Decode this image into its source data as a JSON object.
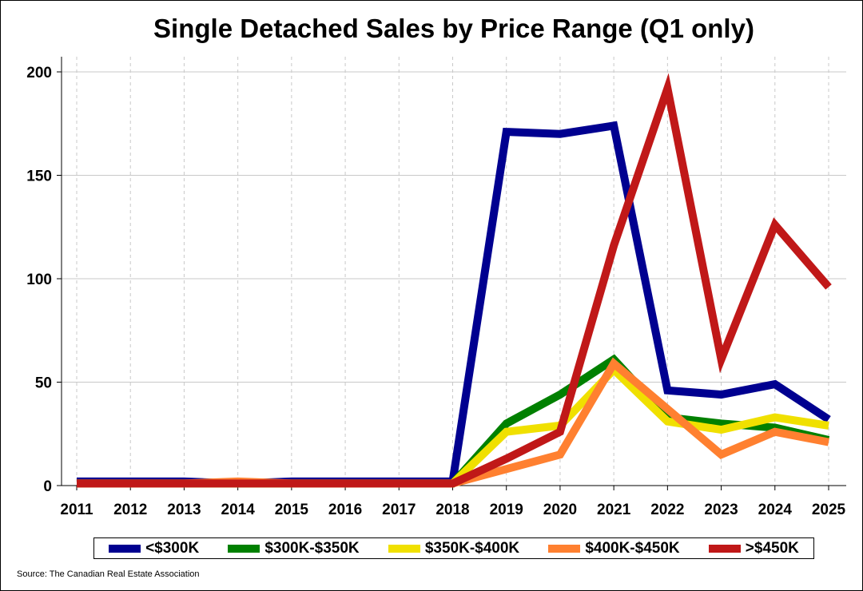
{
  "chart_data": {
    "type": "line",
    "title": "Single Detached Sales by Price Range (Q1 only)",
    "xlabel": "",
    "ylabel": "",
    "x": [
      2011,
      2012,
      2013,
      2014,
      2015,
      2016,
      2017,
      2018,
      2019,
      2020,
      2021,
      2022,
      2023,
      2024,
      2025
    ],
    "x_tick_labels": [
      "2011",
      "2012",
      "2013",
      "2014",
      "2015",
      "2016",
      "2017",
      "2018",
      "2019",
      "2020",
      "2021",
      "2022",
      "2023",
      "2024",
      "2025"
    ],
    "ylim": [
      0,
      200
    ],
    "y_ticks": [
      0,
      50,
      100,
      150,
      200
    ],
    "y_tick_labels": [
      "0",
      "50",
      "100",
      "150",
      "200"
    ],
    "grid": {
      "x": "dashed",
      "y": "solid"
    },
    "legend_position": "bottom",
    "series": [
      {
        "name": "<$300K",
        "color": "#000090",
        "values": [
          2,
          2,
          2,
          1,
          2,
          2,
          2,
          2,
          171,
          170,
          174,
          46,
          44,
          49,
          32
        ]
      },
      {
        "name": "$300K-$350K",
        "color": "#008000",
        "values": [
          1,
          1,
          1,
          1,
          1,
          1,
          1,
          1,
          30,
          44,
          61,
          33,
          30,
          28,
          22
        ]
      },
      {
        "name": "$350K-$400K",
        "color": "#f0e000",
        "values": [
          1,
          1,
          1,
          1,
          1,
          1,
          1,
          1,
          26,
          29,
          56,
          31,
          27,
          33,
          29
        ]
      },
      {
        "name": "$400K-$450K",
        "color": "#ff8030",
        "values": [
          1,
          1,
          1,
          2,
          1,
          1,
          1,
          1,
          8,
          15,
          59,
          37,
          15,
          26,
          21
        ]
      },
      {
        "name": ">$450K",
        "color": "#c01818",
        "values": [
          1,
          1,
          1,
          1,
          1,
          1,
          1,
          1,
          13,
          26,
          116,
          192,
          61,
          126,
          96
        ]
      }
    ]
  },
  "source": "Source: The Canadian Real Estate Association"
}
